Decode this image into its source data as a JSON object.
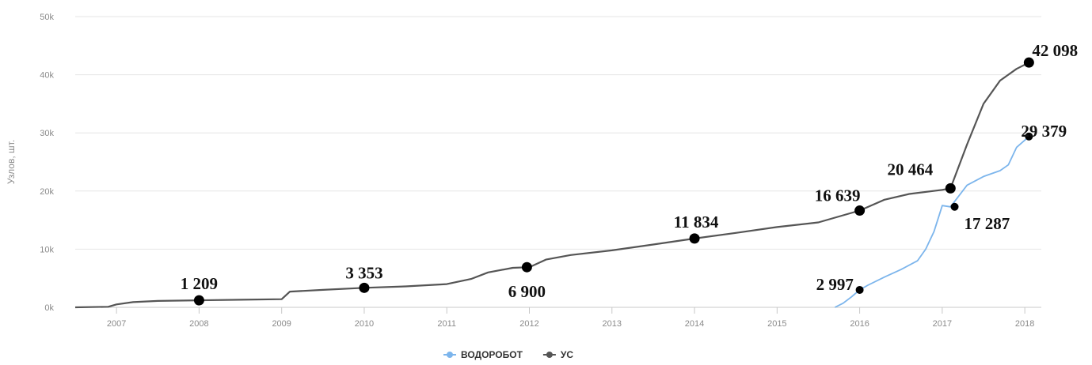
{
  "chart_data": {
    "type": "line",
    "ylabel": "Узлов, шт.",
    "ylim": [
      0,
      50000
    ],
    "yticks": [
      0,
      10000,
      20000,
      30000,
      40000,
      50000
    ],
    "ytick_labels": [
      "0k",
      "10k",
      "20k",
      "30k",
      "40k",
      "50k"
    ],
    "xticks": [
      2007,
      2008,
      2009,
      2010,
      2011,
      2012,
      2013,
      2014,
      2015,
      2016,
      2017,
      2018
    ],
    "xtick_labels": [
      "2007",
      "2008",
      "2009",
      "2010",
      "2011",
      "2012",
      "2013",
      "2014",
      "2015",
      "2016",
      "2017",
      "2018"
    ],
    "xlim": [
      2006.5,
      2018.2
    ],
    "grid": true,
    "legend_position": "bottom-center",
    "colors": {
      "ВОДОРОБОТ": "#7cb5ec",
      "УС": "#555555",
      "markers": "#000000"
    },
    "series": [
      {
        "name": "ВОДОРОБОТ",
        "x": [
          2015.7,
          2015.8,
          2015.9,
          2016.0,
          2016.1,
          2016.3,
          2016.5,
          2016.7,
          2016.8,
          2016.9,
          2017.0,
          2017.1,
          2017.3,
          2017.5,
          2017.7,
          2017.8,
          2017.9,
          2018.05
        ],
        "y": [
          0,
          700,
          1800,
          2997,
          3800,
          5200,
          6500,
          8000,
          10000,
          13000,
          17500,
          17287,
          21000,
          22500,
          23500,
          24500,
          27500,
          29379
        ]
      },
      {
        "name": "УС",
        "x": [
          2006.5,
          2006.9,
          2007.0,
          2007.2,
          2007.5,
          2008.0,
          2008.5,
          2009.0,
          2009.1,
          2009.5,
          2010.0,
          2010.5,
          2011.0,
          2011.3,
          2011.5,
          2011.8,
          2012.0,
          2012.2,
          2012.5,
          2013.0,
          2013.5,
          2014.0,
          2014.5,
          2015.0,
          2015.5,
          2016.0,
          2016.3,
          2016.6,
          2017.0,
          2017.1,
          2017.3,
          2017.5,
          2017.7,
          2017.9,
          2018.05
        ],
        "y": [
          0,
          100,
          500,
          900,
          1100,
          1209,
          1300,
          1400,
          2700,
          3000,
          3353,
          3600,
          4000,
          4900,
          6000,
          6800,
          6900,
          8200,
          9000,
          9800,
          10800,
          11834,
          12800,
          13800,
          14600,
          16639,
          18500,
          19500,
          20200,
          20464,
          28000,
          35000,
          39000,
          41000,
          42098
        ]
      }
    ],
    "markers": [
      {
        "series": "УС",
        "x": 2008.0,
        "y": 1209,
        "label": "1 209"
      },
      {
        "series": "УС",
        "x": 2010.0,
        "y": 3353,
        "label": "3 353"
      },
      {
        "series": "УС",
        "x": 2011.97,
        "y": 6900,
        "label": "6 900"
      },
      {
        "series": "УС",
        "x": 2014.0,
        "y": 11834,
        "label": "11 834"
      },
      {
        "series": "УС",
        "x": 2016.0,
        "y": 16639,
        "label": "16 639"
      },
      {
        "series": "УС",
        "x": 2017.1,
        "y": 20464,
        "label": "20 464"
      },
      {
        "series": "УС",
        "x": 2018.05,
        "y": 42098,
        "label": "42 098"
      },
      {
        "series": "ВОДОРОБОТ",
        "x": 2016.0,
        "y": 2997,
        "label": "2 997"
      },
      {
        "series": "ВОДОРОБОТ",
        "x": 2017.15,
        "y": 17287,
        "label": "17 287"
      },
      {
        "series": "ВОДОРОБОТ",
        "x": 2018.05,
        "y": 29379,
        "label": "29 379"
      }
    ]
  }
}
